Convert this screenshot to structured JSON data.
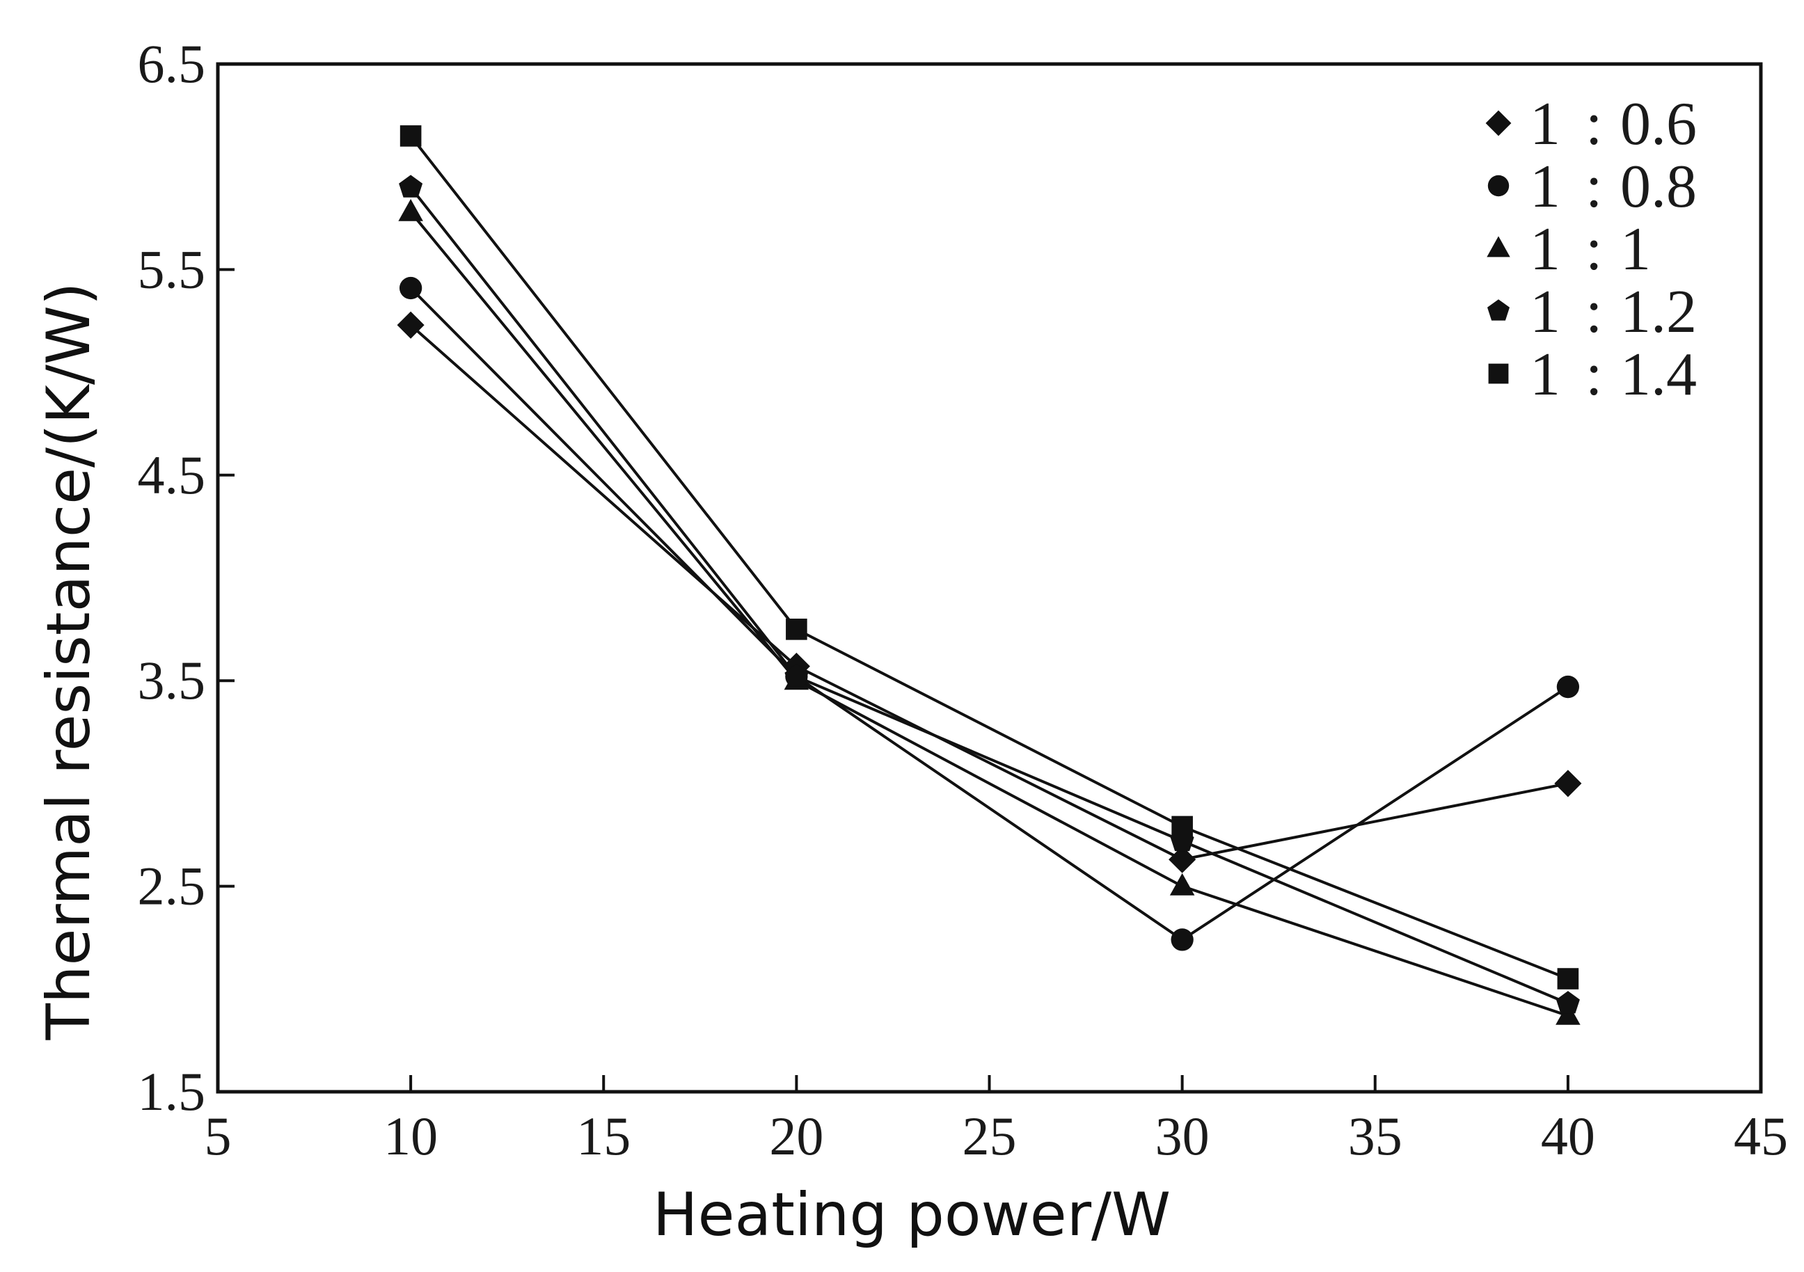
{
  "chart_data": {
    "type": "line",
    "title": "",
    "xlabel": "Heating power/W",
    "ylabel": "Thermal resistance/(K/W)",
    "xlim": [
      5,
      45
    ],
    "ylim": [
      1.5,
      6.5
    ],
    "xticks": [
      "5",
      "10",
      "15",
      "20",
      "25",
      "30",
      "35",
      "40",
      "45"
    ],
    "yticks": [
      "1.5",
      "2.5",
      "3.5",
      "4.5",
      "5.5",
      "6.5"
    ],
    "x": [
      10,
      20,
      30,
      40
    ],
    "grid": false,
    "legend_position": "top-right",
    "colors": {
      "ink": "#111111",
      "background": "#ffffff"
    },
    "series": [
      {
        "name": "1 : 0.6",
        "marker": "diamond",
        "values": [
          5.23,
          3.57,
          2.63,
          3.0
        ]
      },
      {
        "name": "1 : 0.8",
        "marker": "circle",
        "values": [
          5.41,
          3.52,
          2.24,
          3.47
        ]
      },
      {
        "name": "1 : 1",
        "marker": "triangle",
        "values": [
          5.78,
          3.5,
          2.5,
          1.87
        ]
      },
      {
        "name": "1 : 1.2",
        "marker": "pentagon",
        "values": [
          5.9,
          3.52,
          2.72,
          1.93
        ]
      },
      {
        "name": "1 : 1.4",
        "marker": "square",
        "values": [
          6.15,
          3.75,
          2.79,
          2.05
        ]
      }
    ]
  }
}
